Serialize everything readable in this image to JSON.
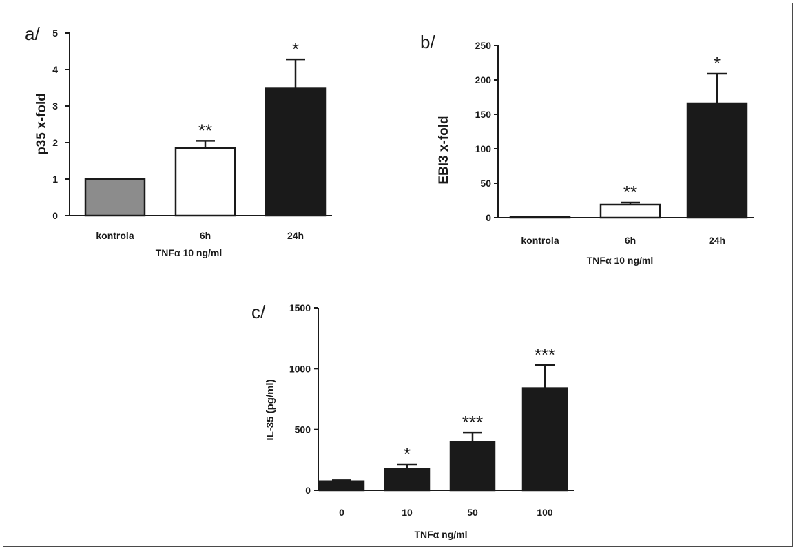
{
  "chart_data": [
    {
      "type": "bar",
      "panel_label": "a/",
      "ylabel": "p35 x-fold",
      "xlabel": "TNFα 10 ng/ml",
      "categories": [
        "kontrola",
        "6h",
        "24h"
      ],
      "values": [
        1.0,
        1.85,
        3.48
      ],
      "errors": [
        0,
        0.2,
        0.8
      ],
      "significance": [
        "",
        "**",
        "*"
      ],
      "bar_colors": [
        "#8c8c8c",
        "#ffffff",
        "#1a1a1a"
      ],
      "ylim": [
        0,
        5
      ],
      "yticks": [
        "0",
        "1",
        "2",
        "3",
        "4",
        "5"
      ]
    },
    {
      "type": "bar",
      "panel_label": "b/",
      "ylabel": "EBI3 x-fold",
      "xlabel": "TNFα 10 ng/ml",
      "categories": [
        "kontrola",
        "6h",
        "24h"
      ],
      "values": [
        1,
        19,
        166
      ],
      "errors": [
        0,
        3,
        43
      ],
      "significance": [
        "",
        "**",
        "*"
      ],
      "bar_colors": [
        "#8c8c8c",
        "#ffffff",
        "#1a1a1a"
      ],
      "ylim": [
        0,
        250
      ],
      "yticks": [
        "0",
        "50",
        "100",
        "150",
        "200",
        "250"
      ]
    },
    {
      "type": "bar",
      "panel_label": "c/",
      "ylabel": "IL-35 (pg/ml)",
      "xlabel": "TNFα ng/ml",
      "categories": [
        "0",
        "10",
        "50",
        "100"
      ],
      "values": [
        75,
        175,
        400,
        840
      ],
      "errors": [
        8,
        40,
        75,
        190
      ],
      "significance": [
        "",
        "*",
        "***",
        "***"
      ],
      "bar_colors": [
        "#1a1a1a",
        "#1a1a1a",
        "#1a1a1a",
        "#1a1a1a"
      ],
      "ylim": [
        0,
        1500
      ],
      "yticks": [
        "0",
        "500",
        "1000",
        "1500"
      ]
    }
  ]
}
